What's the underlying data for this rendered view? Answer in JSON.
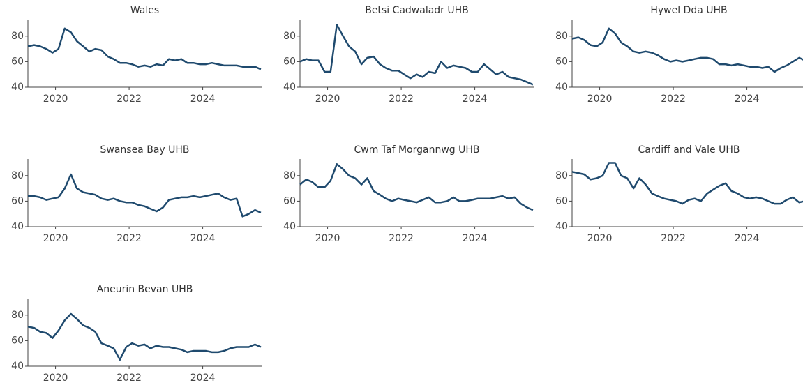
{
  "chart_data": [
    {
      "type": "line",
      "title": "Wales",
      "color": "#1f4a6e",
      "x": [
        2019.25,
        2019.42,
        2019.58,
        2019.75,
        2019.92,
        2020.08,
        2020.25,
        2020.42,
        2020.58,
        2020.75,
        2020.92,
        2021.08,
        2021.25,
        2021.42,
        2021.58,
        2021.75,
        2021.92,
        2022.08,
        2022.25,
        2022.42,
        2022.58,
        2022.75,
        2022.92,
        2023.08,
        2023.25,
        2023.42,
        2023.58,
        2023.75,
        2023.92,
        2024.08,
        2024.25,
        2024.42,
        2024.58,
        2024.75,
        2024.92,
        2025.08,
        2025.25,
        2025.42,
        2025.58
      ],
      "values": [
        72,
        73,
        72,
        70,
        67,
        70,
        86,
        83,
        76,
        72,
        68,
        70,
        69,
        64,
        62,
        59,
        59,
        58,
        56,
        57,
        56,
        58,
        57,
        62,
        61,
        62,
        59,
        59,
        58,
        58,
        59,
        58,
        57,
        57,
        57,
        56,
        56,
        56,
        54
      ],
      "xlim": [
        2019.25,
        2025.6
      ],
      "xticks": [
        2020,
        2022,
        2024
      ],
      "ylim": [
        40,
        93
      ],
      "yticks": [
        40,
        60,
        80
      ]
    },
    {
      "type": "line",
      "title": "Betsi Cadwaladr UHB",
      "color": "#1f4a6e",
      "x": [
        2019.25,
        2019.42,
        2019.58,
        2019.75,
        2019.92,
        2020.08,
        2020.25,
        2020.42,
        2020.58,
        2020.75,
        2020.92,
        2021.08,
        2021.25,
        2021.42,
        2021.58,
        2021.75,
        2021.92,
        2022.08,
        2022.25,
        2022.42,
        2022.58,
        2022.75,
        2022.92,
        2023.08,
        2023.25,
        2023.42,
        2023.58,
        2023.75,
        2023.92,
        2024.08,
        2024.25,
        2024.42,
        2024.58,
        2024.75,
        2024.92,
        2025.08,
        2025.25,
        2025.42,
        2025.58
      ],
      "values": [
        60,
        62,
        61,
        61,
        52,
        52,
        89,
        80,
        72,
        68,
        58,
        63,
        64,
        58,
        55,
        53,
        53,
        50,
        47,
        50,
        48,
        52,
        51,
        60,
        55,
        57,
        56,
        55,
        52,
        52,
        58,
        54,
        50,
        52,
        48,
        47,
        46,
        44,
        42
      ],
      "xlim": [
        2019.25,
        2025.6
      ],
      "xticks": [
        2020,
        2022,
        2024
      ],
      "ylim": [
        40,
        93
      ],
      "yticks": [
        40,
        60,
        80
      ]
    },
    {
      "type": "line",
      "title": "Hywel Dda UHB",
      "color": "#1f4a6e",
      "x": [
        2019.25,
        2019.42,
        2019.58,
        2019.75,
        2019.92,
        2020.08,
        2020.25,
        2020.42,
        2020.58,
        2020.75,
        2020.92,
        2021.08,
        2021.25,
        2021.42,
        2021.58,
        2021.75,
        2021.92,
        2022.08,
        2022.25,
        2022.42,
        2022.58,
        2022.75,
        2022.92,
        2023.08,
        2023.25,
        2023.42,
        2023.58,
        2023.75,
        2023.92,
        2024.08,
        2024.25,
        2024.42,
        2024.58,
        2024.75,
        2024.92,
        2025.08,
        2025.25,
        2025.42,
        2025.58
      ],
      "values": [
        78,
        79,
        77,
        73,
        72,
        75,
        86,
        82,
        75,
        72,
        68,
        67,
        68,
        67,
        65,
        62,
        60,
        61,
        60,
        61,
        62,
        63,
        63,
        62,
        58,
        58,
        57,
        58,
        57,
        56,
        56,
        55,
        56,
        52,
        55,
        57,
        60,
        63,
        61
      ],
      "xlim": [
        2019.25,
        2025.6
      ],
      "xticks": [
        2020,
        2022,
        2024
      ],
      "ylim": [
        40,
        93
      ],
      "yticks": [
        40,
        60,
        80
      ]
    },
    {
      "type": "line",
      "title": "Swansea Bay UHB",
      "color": "#1f4a6e",
      "x": [
        2019.25,
        2019.42,
        2019.58,
        2019.75,
        2019.92,
        2020.08,
        2020.25,
        2020.42,
        2020.58,
        2020.75,
        2020.92,
        2021.08,
        2021.25,
        2021.42,
        2021.58,
        2021.75,
        2021.92,
        2022.08,
        2022.25,
        2022.42,
        2022.58,
        2022.75,
        2022.92,
        2023.08,
        2023.25,
        2023.42,
        2023.58,
        2023.75,
        2023.92,
        2024.08,
        2024.25,
        2024.42,
        2024.58,
        2024.75,
        2024.92,
        2025.08,
        2025.25,
        2025.42,
        2025.58
      ],
      "values": [
        64,
        64,
        63,
        61,
        62,
        63,
        70,
        81,
        70,
        67,
        66,
        65,
        62,
        61,
        62,
        60,
        59,
        59,
        57,
        56,
        54,
        52,
        55,
        61,
        62,
        63,
        63,
        64,
        63,
        64,
        65,
        66,
        63,
        61,
        62,
        48,
        50,
        53,
        51
      ],
      "xlim": [
        2019.25,
        2025.6
      ],
      "xticks": [
        2020,
        2022,
        2024
      ],
      "ylim": [
        40,
        93
      ],
      "yticks": [
        40,
        60,
        80
      ]
    },
    {
      "type": "line",
      "title": "Cwm Taf Morgannwg UHB",
      "color": "#1f4a6e",
      "x": [
        2019.25,
        2019.42,
        2019.58,
        2019.75,
        2019.92,
        2020.08,
        2020.25,
        2020.42,
        2020.58,
        2020.75,
        2020.92,
        2021.08,
        2021.25,
        2021.42,
        2021.58,
        2021.75,
        2021.92,
        2022.08,
        2022.25,
        2022.42,
        2022.58,
        2022.75,
        2022.92,
        2023.08,
        2023.25,
        2023.42,
        2023.58,
        2023.75,
        2023.92,
        2024.08,
        2024.25,
        2024.42,
        2024.58,
        2024.75,
        2024.92,
        2025.08,
        2025.25,
        2025.42,
        2025.58
      ],
      "values": [
        73,
        77,
        75,
        71,
        71,
        76,
        89,
        85,
        80,
        78,
        73,
        78,
        68,
        65,
        62,
        60,
        62,
        61,
        60,
        59,
        61,
        63,
        59,
        59,
        60,
        63,
        60,
        60,
        61,
        62,
        62,
        62,
        63,
        64,
        62,
        63,
        58,
        55,
        53
      ],
      "xlim": [
        2019.25,
        2025.6
      ],
      "xticks": [
        2020,
        2022,
        2024
      ],
      "ylim": [
        40,
        93
      ],
      "yticks": [
        40,
        60,
        80
      ]
    },
    {
      "type": "line",
      "title": "Cardiff and Vale UHB",
      "color": "#1f4a6e",
      "x": [
        2019.25,
        2019.42,
        2019.58,
        2019.75,
        2019.92,
        2020.08,
        2020.25,
        2020.42,
        2020.58,
        2020.75,
        2020.92,
        2021.08,
        2021.25,
        2021.42,
        2021.58,
        2021.75,
        2021.92,
        2022.08,
        2022.25,
        2022.42,
        2022.58,
        2022.75,
        2022.92,
        2023.08,
        2023.25,
        2023.42,
        2023.58,
        2023.75,
        2023.92,
        2024.08,
        2024.25,
        2024.42,
        2024.58,
        2024.75,
        2024.92,
        2025.08,
        2025.25,
        2025.42,
        2025.58
      ],
      "values": [
        83,
        82,
        81,
        77,
        78,
        80,
        90,
        90,
        80,
        78,
        70,
        78,
        73,
        66,
        64,
        62,
        61,
        60,
        58,
        61,
        62,
        60,
        66,
        69,
        72,
        74,
        68,
        66,
        63,
        62,
        63,
        62,
        60,
        58,
        58,
        61,
        63,
        59,
        60
      ],
      "xlim": [
        2019.25,
        2025.6
      ],
      "xticks": [
        2020,
        2022,
        2024
      ],
      "ylim": [
        40,
        93
      ],
      "yticks": [
        40,
        60,
        80
      ]
    },
    {
      "type": "line",
      "title": "Aneurin Bevan UHB",
      "color": "#1f4a6e",
      "x": [
        2019.25,
        2019.42,
        2019.58,
        2019.75,
        2019.92,
        2020.08,
        2020.25,
        2020.42,
        2020.58,
        2020.75,
        2020.92,
        2021.08,
        2021.25,
        2021.42,
        2021.58,
        2021.75,
        2021.92,
        2022.08,
        2022.25,
        2022.42,
        2022.58,
        2022.75,
        2022.92,
        2023.08,
        2023.25,
        2023.42,
        2023.58,
        2023.75,
        2023.92,
        2024.08,
        2024.25,
        2024.42,
        2024.58,
        2024.75,
        2024.92,
        2025.08,
        2025.25,
        2025.42,
        2025.58
      ],
      "values": [
        71,
        70,
        67,
        66,
        62,
        68,
        76,
        81,
        77,
        72,
        70,
        67,
        58,
        56,
        54,
        45,
        55,
        58,
        56,
        57,
        54,
        56,
        55,
        55,
        54,
        53,
        51,
        52,
        52,
        52,
        51,
        51,
        52,
        54,
        55,
        55,
        55,
        57,
        55
      ],
      "xlim": [
        2019.25,
        2025.6
      ],
      "xticks": [
        2020,
        2022,
        2024
      ],
      "ylim": [
        40,
        93
      ],
      "yticks": [
        40,
        60,
        80
      ]
    }
  ]
}
